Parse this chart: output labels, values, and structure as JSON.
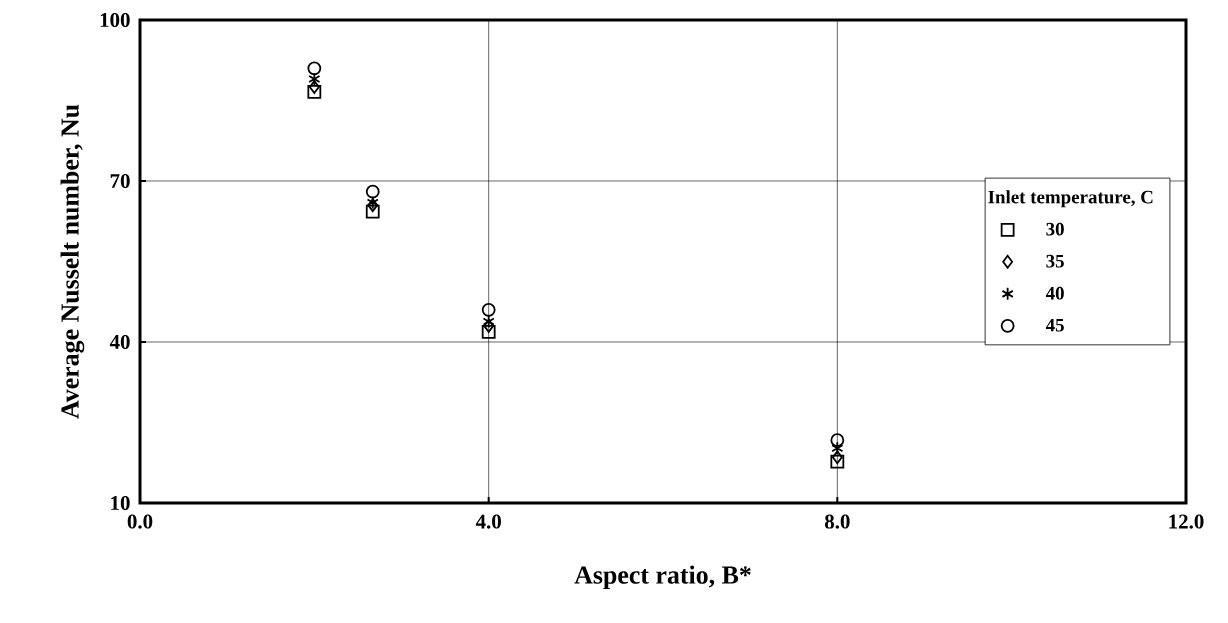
{
  "chart_data": {
    "type": "scatter",
    "xlabel": "Aspect ratio, B*",
    "ylabel": "Average Nusselt number, Nu",
    "legend_title": "Inlet temperature,  C",
    "x": [
      2.0,
      2.67,
      4.0,
      8.0
    ],
    "series": [
      {
        "name": "30",
        "color": "#000000",
        "marker": "square",
        "values": [
          86.6,
          64.3,
          41.9,
          17.7
        ]
      },
      {
        "name": "35",
        "color": "#000000",
        "marker": "diamond",
        "values": [
          87.5,
          65.5,
          43.0,
          18.5
        ]
      },
      {
        "name": "40",
        "color": "#000000",
        "marker": "cross",
        "values": [
          89.0,
          66.0,
          43.8,
          20.2
        ]
      },
      {
        "name": "45",
        "color": "#000000",
        "marker": "circle",
        "values": [
          91.0,
          68.0,
          46.0,
          21.7
        ]
      }
    ],
    "xlim": [
      0,
      12
    ],
    "ylim": [
      10,
      100
    ],
    "xticks": [
      {
        "value": 0,
        "label": "0.0"
      },
      {
        "value": 4,
        "label": "4.0"
      },
      {
        "value": 8,
        "label": "8.0"
      },
      {
        "value": 12,
        "label": "12.0"
      }
    ],
    "yticks": [
      10,
      40,
      70,
      100
    ],
    "grid": true,
    "legend": "right"
  }
}
